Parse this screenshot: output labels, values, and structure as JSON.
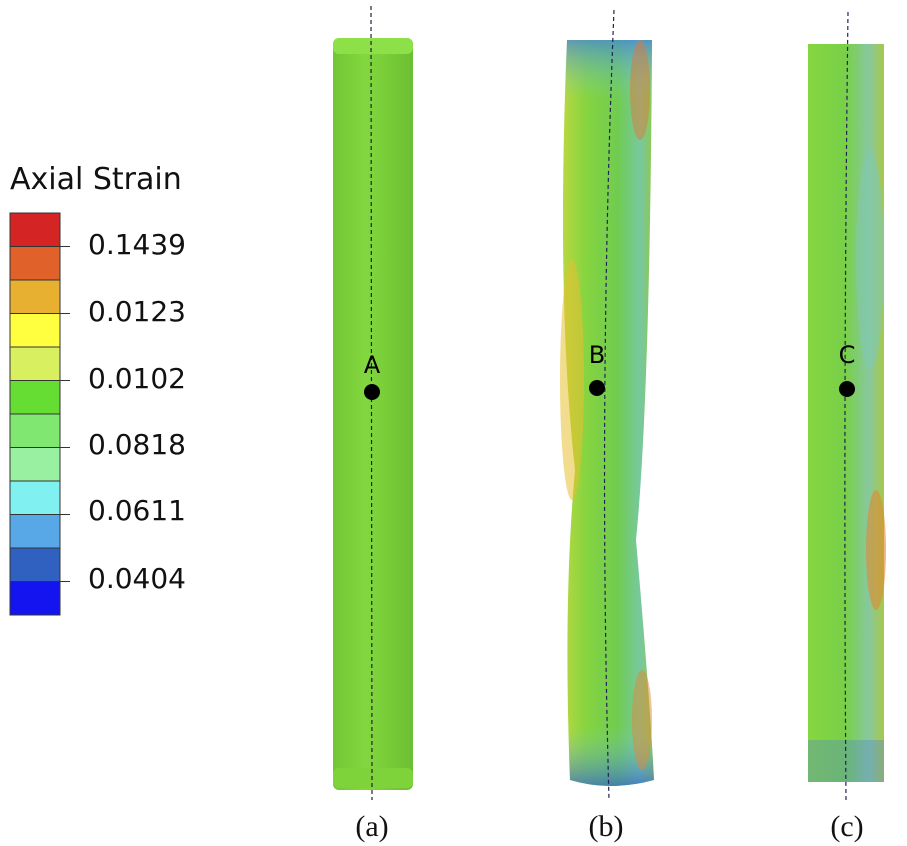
{
  "legend": {
    "title": "Axial Strain",
    "labels": [
      "0.1439",
      "0.0123",
      "0.0102",
      "0.0818",
      "0.0611",
      "0.0404"
    ]
  },
  "panels": [
    {
      "point": "A",
      "caption": "(a)"
    },
    {
      "point": "B",
      "caption": "(b)"
    },
    {
      "point": "C",
      "caption": "(c)"
    }
  ]
}
